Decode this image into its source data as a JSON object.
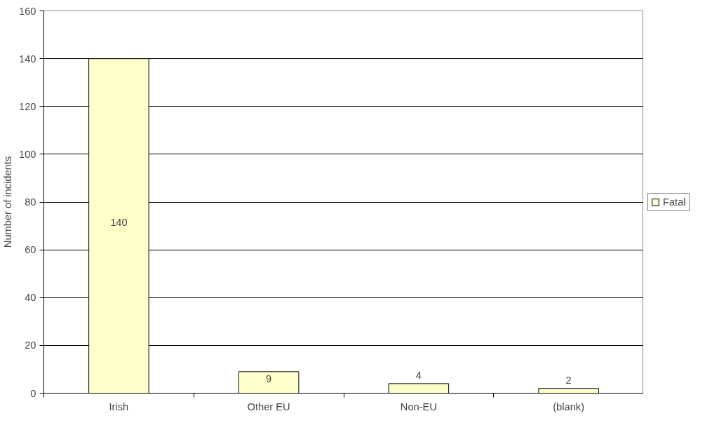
{
  "chart_data": {
    "type": "bar",
    "ylabel": "Number of incidents",
    "categories": [
      "Irish",
      "Other EU",
      "Non-EU",
      "(blank)"
    ],
    "series": [
      {
        "name": "Fatal",
        "color": "#ffffcc",
        "values": [
          140,
          9,
          4,
          2
        ]
      }
    ],
    "ylim": [
      0,
      160
    ],
    "yticks": [
      0,
      20,
      40,
      60,
      80,
      100,
      120,
      140,
      160
    ],
    "grid": "y",
    "legend": "right",
    "data_labels": true
  }
}
